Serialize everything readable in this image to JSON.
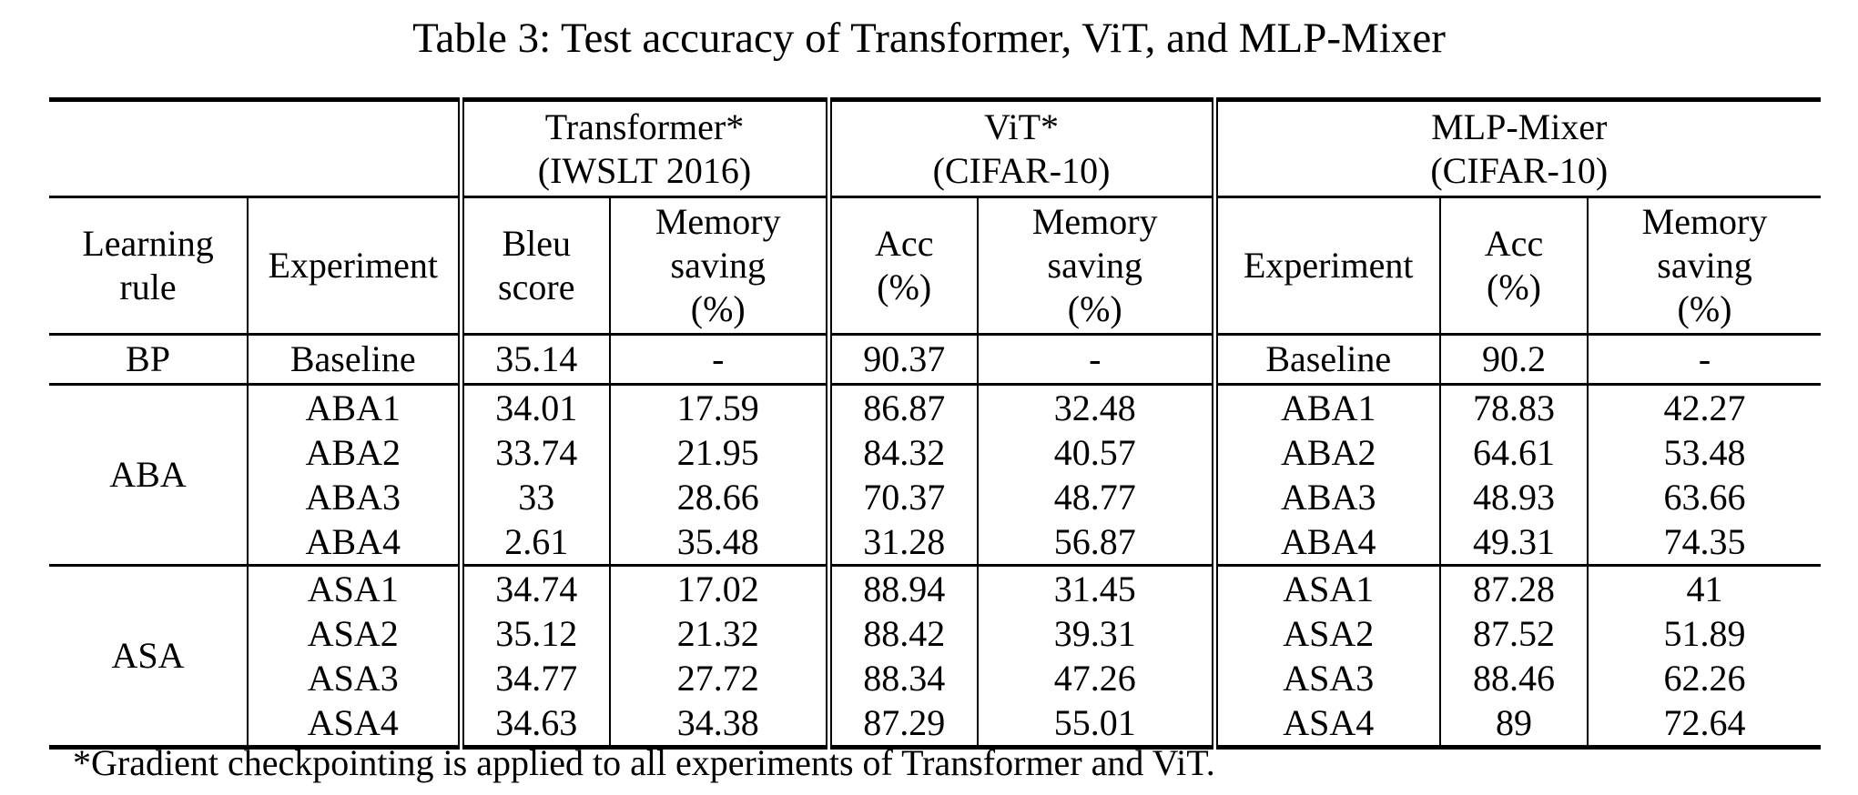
{
  "caption": "Table 3: Test accuracy of Transformer, ViT, and MLP-Mixer",
  "groups": {
    "transformer": {
      "name": "Transformer*",
      "dataset": "(IWSLT 2016)"
    },
    "vit": {
      "name": "ViT*",
      "dataset": "(CIFAR-10)"
    },
    "mixer": {
      "name": "MLP-Mixer",
      "dataset": "(CIFAR-10)"
    }
  },
  "columns": {
    "learning_rule": [
      "Learning",
      "rule"
    ],
    "experiment": "Experiment",
    "bleu": [
      "Bleu",
      "score"
    ],
    "memory": [
      "Memory",
      "saving",
      "(%)"
    ],
    "acc": [
      "Acc",
      "(%)"
    ]
  },
  "bp": {
    "rule": "BP",
    "experiment": "Baseline",
    "bleu": "35.14",
    "t_mem": "-",
    "vit_acc": "90.37",
    "vit_mem": "-",
    "mix_exp": "Baseline",
    "mix_acc": "90.2",
    "mix_mem": "-"
  },
  "aba_label": "ABA",
  "asa_label": "ASA",
  "rows": [
    {
      "exp": "ABA1",
      "bleu": "34.01",
      "t_mem": "17.59",
      "vit_acc": "86.87",
      "vit_mem": "32.48",
      "mix_exp": "ABA1",
      "mix_acc": "78.83",
      "mix_mem": "42.27"
    },
    {
      "exp": "ABA2",
      "bleu": "33.74",
      "t_mem": "21.95",
      "vit_acc": "84.32",
      "vit_mem": "40.57",
      "mix_exp": "ABA2",
      "mix_acc": "64.61",
      "mix_mem": "53.48"
    },
    {
      "exp": "ABA3",
      "bleu": "33",
      "t_mem": "28.66",
      "vit_acc": "70.37",
      "vit_mem": "48.77",
      "mix_exp": "ABA3",
      "mix_acc": "48.93",
      "mix_mem": "63.66"
    },
    {
      "exp": "ABA4",
      "bleu": "2.61",
      "t_mem": "35.48",
      "vit_acc": "31.28",
      "vit_mem": "56.87",
      "mix_exp": "ABA4",
      "mix_acc": "49.31",
      "mix_mem": "74.35"
    },
    {
      "exp": "ASA1",
      "bleu": "34.74",
      "t_mem": "17.02",
      "vit_acc": "88.94",
      "vit_mem": "31.45",
      "mix_exp": "ASA1",
      "mix_acc": "87.28",
      "mix_mem": "41"
    },
    {
      "exp": "ASA2",
      "bleu": "35.12",
      "t_mem": "21.32",
      "vit_acc": "88.42",
      "vit_mem": "39.31",
      "mix_exp": "ASA2",
      "mix_acc": "87.52",
      "mix_mem": "51.89"
    },
    {
      "exp": "ASA3",
      "bleu": "34.77",
      "t_mem": "27.72",
      "vit_acc": "88.34",
      "vit_mem": "47.26",
      "mix_exp": "ASA3",
      "mix_acc": "88.46",
      "mix_mem": "62.26"
    },
    {
      "exp": "ASA4",
      "bleu": "34.63",
      "t_mem": "34.38",
      "vit_acc": "87.29",
      "vit_mem": "55.01",
      "mix_exp": "ASA4",
      "mix_acc": "89",
      "mix_mem": "72.64"
    }
  ],
  "footnote": "*Gradient checkpointing is applied to all experiments of Transformer and ViT."
}
